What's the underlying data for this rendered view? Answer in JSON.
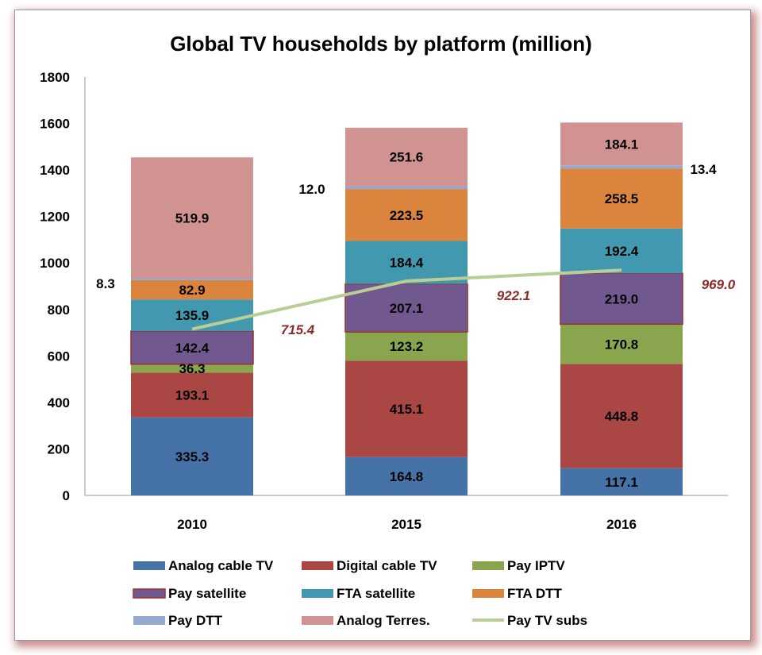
{
  "chart_data": {
    "type": "bar",
    "stacked": true,
    "title": "Global TV households by platform (million)",
    "xlabel": "",
    "ylabel": "",
    "ylim": [
      0,
      1800
    ],
    "yticks": [
      0,
      200,
      400,
      600,
      800,
      1000,
      1200,
      1400,
      1600,
      1800
    ],
    "categories": [
      "2010",
      "2015",
      "2016"
    ],
    "series": [
      {
        "name": "Analog cable TV",
        "color": "#4572A7",
        "values": [
          335.3,
          164.8,
          117.1
        ]
      },
      {
        "name": "Digital cable TV",
        "color": "#AA4643",
        "values": [
          193.1,
          415.1,
          448.8
        ]
      },
      {
        "name": "Pay IPTV",
        "color": "#89A54E",
        "values": [
          36.3,
          123.2,
          170.8
        ]
      },
      {
        "name": "Pay satellite",
        "color": "#71588F",
        "values": [
          142.4,
          207.1,
          219.0
        ]
      },
      {
        "name": "FTA satellite",
        "color": "#4198AF",
        "values": [
          135.9,
          184.4,
          192.4
        ]
      },
      {
        "name": "FTA DTT",
        "color": "#DB843D",
        "values": [
          82.9,
          223.5,
          258.5
        ]
      },
      {
        "name": "Pay DTT",
        "color": "#93A9CF",
        "values": [
          8.3,
          12.0,
          13.4
        ]
      },
      {
        "name": "Analog Terres.",
        "color": "#D19392",
        "values": [
          519.9,
          251.6,
          184.1
        ]
      }
    ],
    "line_series": {
      "name": "Pay TV subs",
      "color": "#B9CD96",
      "values": [
        715.4,
        922.1,
        969.0
      ],
      "label_color": "#8B2A2A"
    },
    "legend": "bottom"
  }
}
